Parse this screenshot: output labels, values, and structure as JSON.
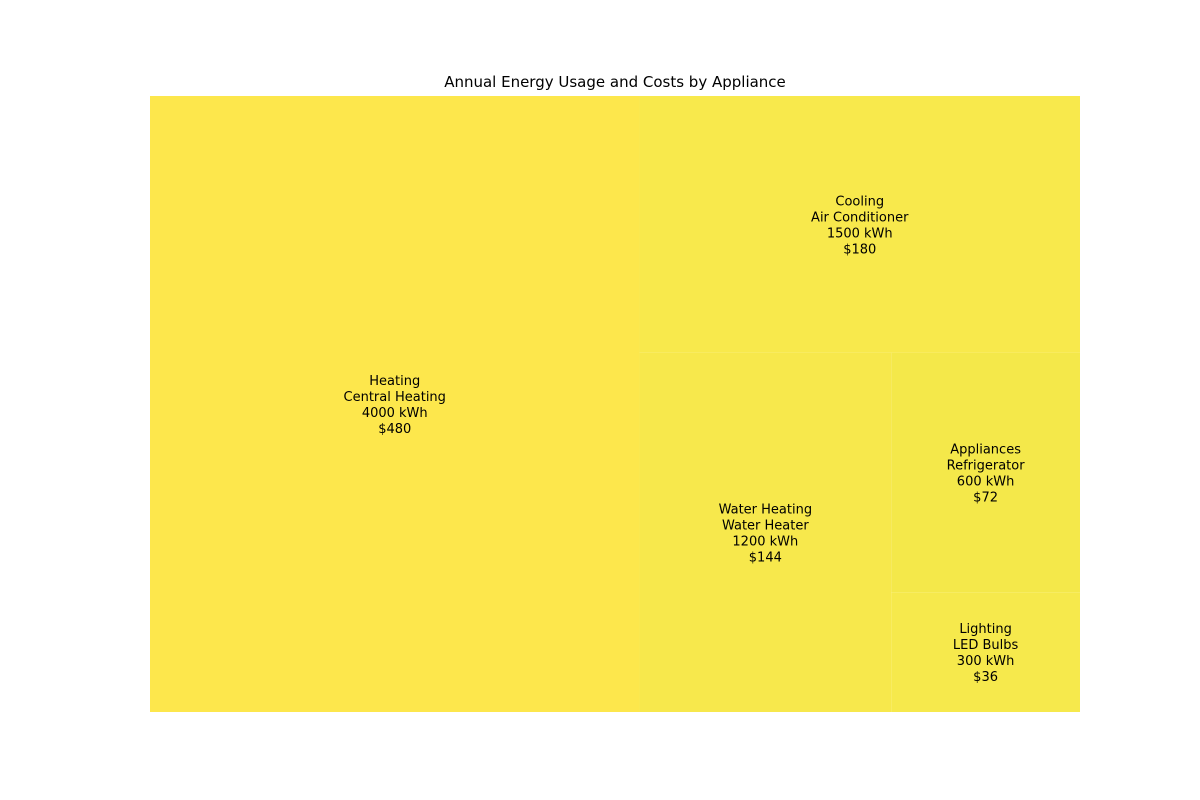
{
  "chart_data": {
    "type": "treemap",
    "title": "Annual Energy Usage and Costs by Appliance",
    "unit": "kWh",
    "currency": "$",
    "items": [
      {
        "category": "Heating",
        "appliance": "Central Heating",
        "kwh": 4000,
        "cost": 480,
        "color": "#fde74c"
      },
      {
        "category": "Cooling",
        "appliance": "Air Conditioner",
        "kwh": 1500,
        "cost": 180,
        "color": "#f8e94c"
      },
      {
        "category": "Water Heating",
        "appliance": "Water Heater",
        "kwh": 1200,
        "cost": 144,
        "color": "#f7e84c"
      },
      {
        "category": "Appliances",
        "appliance": "Refrigerator",
        "kwh": 600,
        "cost": 72,
        "color": "#f4e84a"
      },
      {
        "category": "Lighting",
        "appliance": "LED Bulbs",
        "kwh": 300,
        "cost": 36,
        "color": "#f6e94c"
      }
    ]
  }
}
